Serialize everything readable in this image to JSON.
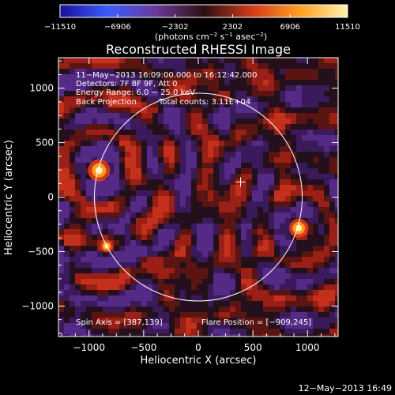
{
  "colorbar": {
    "ticks": [
      "−11510",
      "−6906",
      "−2302",
      "2302",
      "6906",
      "11510"
    ],
    "unit_parts": [
      "(photons cm",
      "−2",
      " s",
      "−1",
      " asec",
      "−2",
      ")"
    ],
    "colors": [
      "#1a0f99",
      "#3c5cff",
      "#6a3a9a",
      "#2b1010",
      "#d23a1a",
      "#ff9f22",
      "#fff3b0"
    ]
  },
  "chart_data": {
    "type": "heatmap",
    "title": "Reconstructed RHESSI Image",
    "xlabel": "Heliocentric X (arcsec)",
    "ylabel": "Heliocentric Y (arcsec)",
    "xlim": [
      -1280,
      1280
    ],
    "ylim": [
      -1280,
      1280
    ],
    "x_ticks": [
      -1000,
      -500,
      0,
      500,
      1000
    ],
    "y_ticks": [
      -1000,
      -500,
      0,
      500,
      1000
    ],
    "x_tick_labels": [
      "−1000",
      "−500",
      "0",
      "500",
      "1000"
    ],
    "y_tick_labels": [
      "−1000",
      "−500",
      "0",
      "500",
      "1000"
    ],
    "solar_radius_arcsec": 951,
    "sources": [
      {
        "x": -909,
        "y": 245,
        "intensity": 11510
      },
      {
        "x": 920,
        "y": -285,
        "intensity": 9500
      },
      {
        "x": -840,
        "y": -450,
        "intensity": 5200
      }
    ],
    "spin_axis": [
      387,
      139
    ],
    "flare_position": [
      -909,
      245
    ]
  },
  "annotations": {
    "time_range": "11−May−2013 16:09:00.000 to 16:12:42.000",
    "detectors": "Detectors: 7F 8F 9F, Att 0",
    "energy_range": "Energy Range: 6.0 − 25.0 keV",
    "back_projection": "Back Projection",
    "total_counts": "Total counts: 3.11E+04",
    "spin_axis": "Spin Axis = [387,139]",
    "flare_position": "Flare Position = [−909,245]"
  },
  "footer": {
    "timestamp": "12−May−2013 16:49"
  }
}
